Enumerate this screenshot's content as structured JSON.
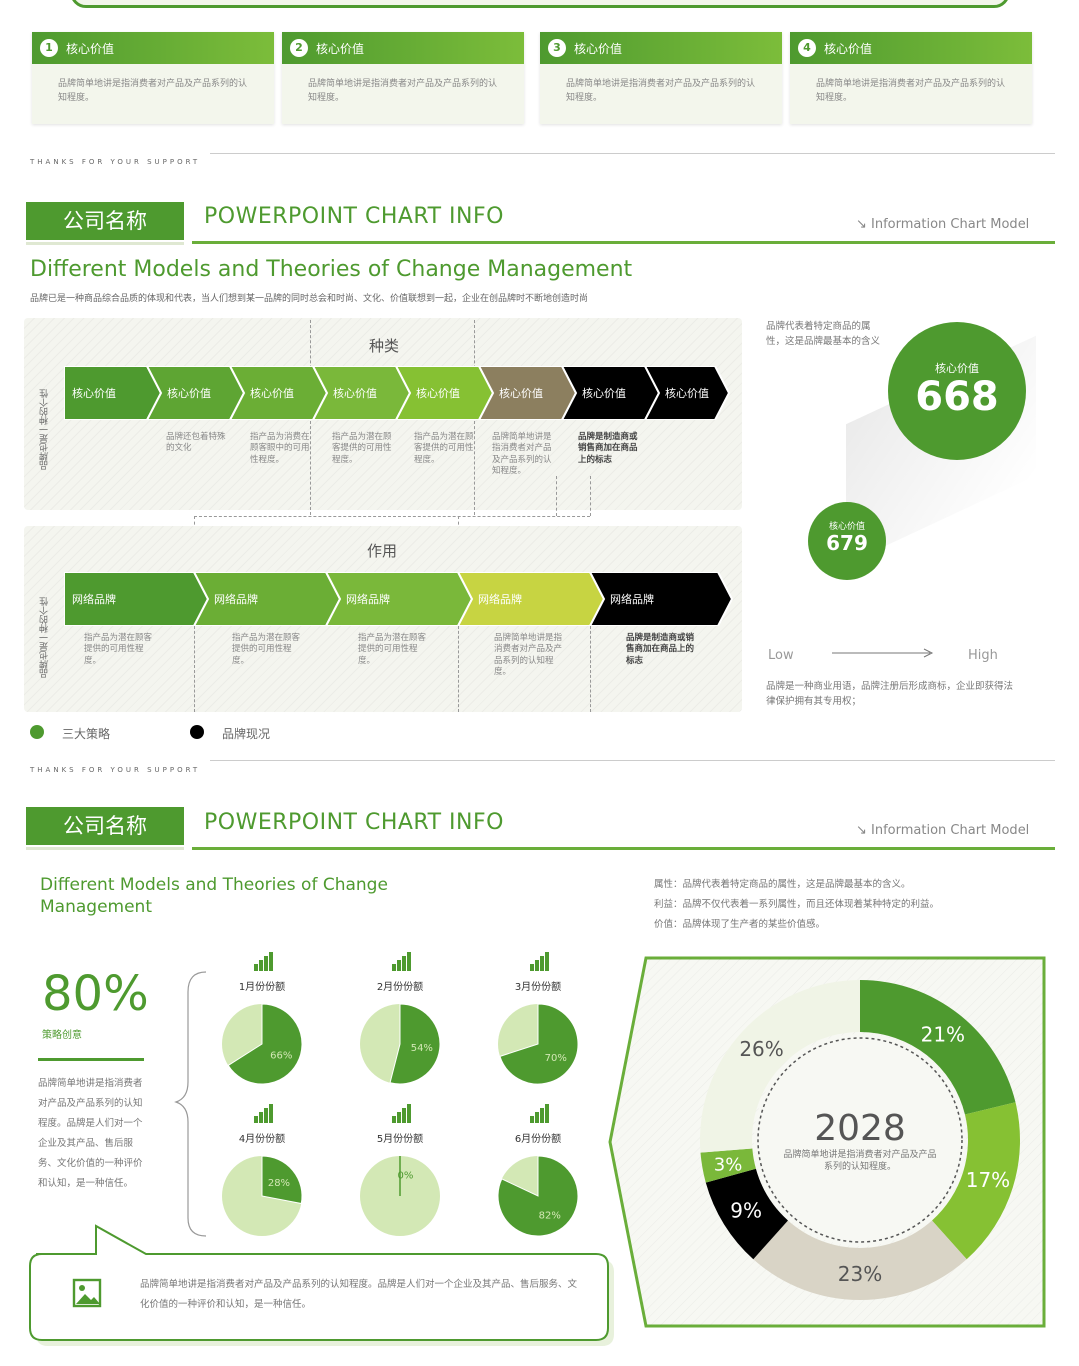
{
  "top_cards": [
    {
      "num": "1",
      "title": "核心价值",
      "text": "品牌简单地讲是指消费者对产品及产品系列的认知程度。"
    },
    {
      "num": "2",
      "title": "核心价值",
      "text": "品牌简单地讲是指消费者对产品及产品系列的认知程度。"
    },
    {
      "num": "3",
      "title": "核心价值",
      "text": "品牌简单地讲是指消费者对产品及产品系列的认知程度。"
    },
    {
      "num": "4",
      "title": "核心价值",
      "text": "品牌简单地讲是指消费者对产品及产品系列的认知程度。"
    }
  ],
  "thanks": "THANKS FOR YOUR SUPPORT",
  "slide1": {
    "company": "公司名称",
    "header": "POWERPOINT CHART INFO",
    "model_link": "↘ Information Chart Model",
    "title": "Different Models and Theories of Change Management",
    "subtitle": "品牌已是一种商品综合品质的体现和代表，当人们想到某一品牌的同时总会和时尚、文化、价值联想到一起，企业在创品牌时不断地创造时尚",
    "section1": {
      "label": "种类",
      "side_label": "品牌也是一种的个性",
      "chevrons": [
        "核心价值",
        "核心价值",
        "核心价值",
        "核心价值",
        "核心价值",
        "核心价值",
        "核心价值",
        "核心价值"
      ],
      "descs": [
        "",
        "品牌还包着特殊的文化",
        "指产品为消费在顾客眼中的可用性程度。",
        "指产品为潜在顾客提供的可用性程度。",
        "指产品为潜在顾客提供的可用性程度。",
        "品牌简单地讲是指消费者对产品及产品系列的认知程度。",
        "品牌是制造商或销售商加在商品上的标志",
        ""
      ]
    },
    "section2": {
      "label": "作用",
      "side_label": "品牌也是一种的个性",
      "chevrons": [
        "网络品牌",
        "网络品牌",
        "网络品牌",
        "网络品牌",
        "网络品牌"
      ],
      "descs": [
        "指产品为潜在顾客提供的可用性程度。",
        "指产品为潜在顾客提供的可用性程度。",
        "指产品为潜在顾客提供的可用性程度。",
        "品牌简单地讲是指消费者对产品及产品系列的认知程度。",
        "品牌是制造商或销售商加在商品上的标志"
      ]
    },
    "legend": [
      {
        "label": "三大策略",
        "color": "#4e9a2f"
      },
      {
        "label": "品牌现况",
        "color": "#000000"
      }
    ],
    "side_text": "品牌代表着特定商品的属性，这是品牌最基本的含义",
    "bubble_big": {
      "label": "核心价值",
      "value": "668"
    },
    "bubble_small": {
      "label": "核心价值",
      "value": "679"
    },
    "low": "Low",
    "high": "High",
    "bottom_text": "品牌是一种商业用语，品牌注册后形成商标，企业即获得法律保护拥有其专用权；"
  },
  "slide2": {
    "company": "公司名称",
    "header": "POWERPOINT CHART INFO",
    "model_link": "↘ Information Chart Model",
    "title": "Different Models and Theories of Change Management",
    "notes": [
      "属性：品牌代表着特定商品的属性，这是品牌最基本的含义。",
      "利益：品牌不仅代表着一系列属性，而且还体现着某种特定的利益。",
      "价值：品牌体现了生产者的某些价值感。"
    ],
    "big_pct": "80%",
    "big_pct_label": "策略创意",
    "left_text": "品牌简单地讲是指消费者对产品及产品系列的认知程度。品牌是人们对一个企业及其产品、售后服务、文化价值的一种评价和认知，是一种信任。",
    "bottom_text": "品牌简单地讲是指消费者对产品及产品系列的认知程度。品牌是人们对一个企业及其产品、售后服务、文化价值的一种评价和认知，是一种信任。",
    "donut_center_value": "2028",
    "donut_center_text": "品牌简单地讲是指消费者对产品及产品系列的认知程度。"
  },
  "chart_data": [
    {
      "type": "pie",
      "title": "月份份额",
      "categories": [
        "1月份份额",
        "2月份份额",
        "3月份份额",
        "4月份份额",
        "5月份份额",
        "6月份份额"
      ],
      "values": [
        66,
        54,
        70,
        28,
        0,
        82
      ],
      "labels": [
        "66%",
        "54%",
        "70%",
        "28%",
        "0%",
        "82%"
      ],
      "colors": {
        "share": "#4e9a2f",
        "rest": "#d3e8b5"
      }
    },
    {
      "type": "pie",
      "categories": [
        "",
        "",
        "",
        "",
        "",
        ""
      ],
      "values": [
        21,
        17,
        23,
        9,
        3,
        26
      ],
      "labels": [
        "21%",
        "17%",
        "23%",
        "9%",
        "3%",
        "26%"
      ],
      "colors": [
        "#4e9a2f",
        "#86c133",
        "#d9d4c6",
        "#000000",
        "#7ab83a",
        "#f0f4e6"
      ]
    }
  ]
}
